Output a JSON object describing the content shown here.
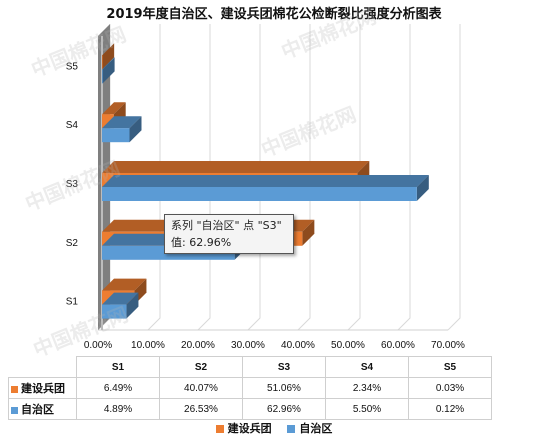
{
  "title": "2019年度自治区、建设兵团棉花公检断裂比强度分析图表",
  "watermark": "中国棉花网",
  "tooltip": {
    "series_line": "系列 \"自治区\" 点 \"S3\"",
    "value_line": "值: 62.96%"
  },
  "chart_data": {
    "type": "bar",
    "orientation": "horizontal",
    "style": "3d",
    "categories": [
      "S1",
      "S2",
      "S3",
      "S4",
      "S5"
    ],
    "series": [
      {
        "name": "建设兵团",
        "values": [
          6.49,
          40.07,
          51.06,
          2.34,
          0.03
        ],
        "labels": [
          "6.49%",
          "40.07%",
          "51.06%",
          "2.34%",
          "0.03%"
        ],
        "color": "#ED7D31"
      },
      {
        "name": "自治区",
        "values": [
          4.89,
          26.53,
          62.96,
          5.5,
          0.12
        ],
        "labels": [
          "4.89%",
          "26.53%",
          "62.96%",
          "5.50%",
          "0.12%"
        ],
        "color": "#5B9BD5"
      }
    ],
    "xlim": [
      0,
      70
    ],
    "x_ticks": [
      "0.00%",
      "10.00%",
      "20.00%",
      "30.00%",
      "40.00%",
      "50.00%",
      "60.00%",
      "70.00%"
    ],
    "grid": true,
    "legend": "bottom",
    "data_table": true
  }
}
